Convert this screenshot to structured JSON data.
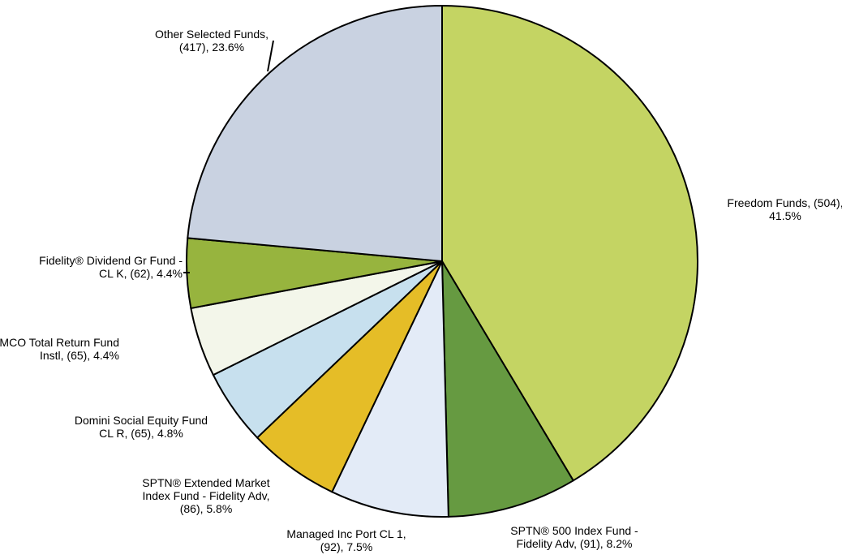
{
  "chart_data": {
    "type": "pie",
    "title": "",
    "slices": [
      {
        "name": "Freedom Funds",
        "count": 504,
        "percent": 41.5,
        "color": "#c4d463",
        "label_lines": [
          "Freedom Funds, (504),",
          "41.5%"
        ]
      },
      {
        "name": "SPTN® 500 Index Fund - Fidelity Adv",
        "count": 91,
        "percent": 8.2,
        "color": "#669a41",
        "label_lines": [
          "SPTN® 500 Index Fund -",
          "Fidelity Adv, (91), 8.2%"
        ]
      },
      {
        "name": "Managed Inc Port CL 1",
        "count": 92,
        "percent": 7.5,
        "color": "#e3ebf7",
        "label_lines": [
          "Managed Inc Port CL 1,",
          "(92), 7.5%"
        ]
      },
      {
        "name": "SPTN® Extended Market Index Fund - Fidelity Adv",
        "count": 86,
        "percent": 5.8,
        "color": "#e5bd27",
        "label_lines": [
          "SPTN® Extended Market",
          "Index Fund - Fidelity Adv,",
          "(86), 5.8%"
        ]
      },
      {
        "name": "Domini Social Equity Fund CL R",
        "count": 65,
        "percent": 4.8,
        "color": "#c7e0ee",
        "label_lines": [
          "Domini Social Equity Fund",
          "CL R, (65), 4.8%"
        ]
      },
      {
        "name": "PIMCO Total Return Fund Instl",
        "count": 65,
        "percent": 4.4,
        "color": "#f3f6ea",
        "label_lines": [
          "PIMCO Total Return Fund",
          "Instl, (65),  4.4%"
        ]
      },
      {
        "name": "Fidelity® Dividend Gr Fund - CL K",
        "count": 62,
        "percent": 4.4,
        "color": "#97b43e",
        "label_lines": [
          "Fidelity® Dividend Gr Fund -",
          "CL K, (62), 4.4%"
        ]
      },
      {
        "name": "Other Selected Funds",
        "count": 417,
        "percent": 23.6,
        "color": "#c9d2e1",
        "label_lines": [
          "Other Selected  Funds,",
          "(417), 23.6%"
        ]
      }
    ],
    "start_angle": "12 o'clock",
    "direction": "clockwise",
    "legend": "none"
  }
}
